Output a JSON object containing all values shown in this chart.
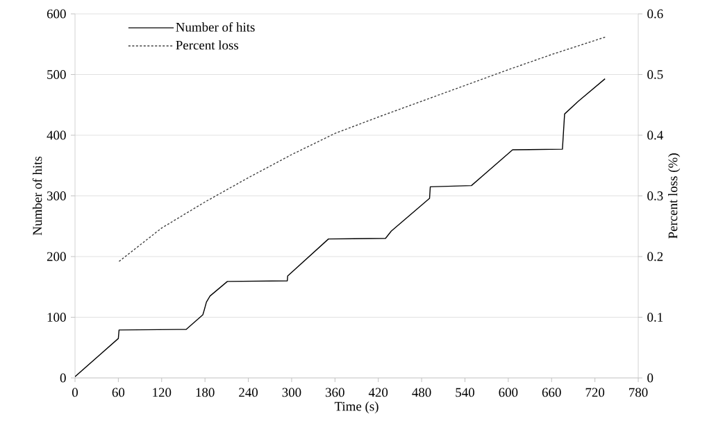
{
  "chart_data": {
    "type": "line",
    "xlabel": "Time (s)",
    "ylabel": "Number of hits",
    "y2label": "Percent loss (%)",
    "xlim": [
      0,
      780
    ],
    "xticks": [
      0,
      60,
      120,
      180,
      240,
      300,
      360,
      420,
      480,
      540,
      600,
      660,
      720,
      780
    ],
    "ylim": [
      0,
      600
    ],
    "yticks": [
      0,
      100,
      200,
      300,
      400,
      500,
      600
    ],
    "y2lim": [
      0,
      0.6
    ],
    "y2ticks": [
      0,
      0.1,
      0.2,
      0.3,
      0.4,
      0.5,
      0.6
    ],
    "grid": "y",
    "legend": "top left",
    "series": [
      {
        "name": "Number of hits",
        "color": "#000000",
        "line_style": "solid",
        "x": [
          0,
          60,
          61,
          154,
          177,
          179,
          182,
          187,
          211,
          294,
          294.5,
          351,
          430,
          438,
          491,
          492,
          549,
          606,
          675,
          678,
          697,
          734
        ],
        "values": [
          2,
          65,
          79,
          80,
          104,
          112,
          125,
          135,
          159,
          160,
          168,
          229,
          230,
          242,
          296,
          315,
          317,
          376,
          377,
          435,
          456,
          493
        ]
      },
      {
        "name": "Percent loss",
        "color": "#404040",
        "line_style": "dashed",
        "axis": "y2",
        "x": [
          61,
          120,
          180,
          240,
          300,
          360,
          420,
          480,
          540,
          600,
          660,
          735
        ],
        "values": [
          0.192,
          0.247,
          0.29,
          0.33,
          0.368,
          0.403,
          0.43,
          0.456,
          0.482,
          0.508,
          0.533,
          0.562
        ]
      }
    ]
  }
}
